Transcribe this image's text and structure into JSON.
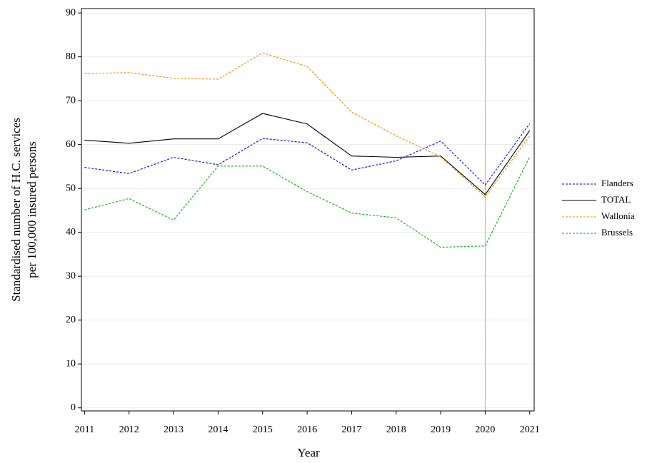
{
  "chart_data": {
    "type": "line",
    "xlabel": "Year",
    "ylabel": [
      "Standardised number of H.C. services",
      "per 100,000 insured persons"
    ],
    "x": [
      2011,
      2012,
      2013,
      2014,
      2015,
      2016,
      2017,
      2018,
      2019,
      2020,
      2021
    ],
    "series": [
      {
        "name": "Flanders",
        "color": "#0000ff",
        "dashed": true,
        "values": [
          54.8,
          53.4,
          57.1,
          55.4,
          61.4,
          60.4,
          54.2,
          56.3,
          60.8,
          50.8,
          64.8
        ]
      },
      {
        "name": "TOTAL",
        "color": "#000000",
        "dashed": false,
        "values": [
          61.0,
          60.3,
          61.3,
          61.3,
          67.1,
          64.7,
          57.4,
          57.1,
          57.4,
          48.6,
          63.2
        ]
      },
      {
        "name": "Wallonia",
        "color": "#ff8c00",
        "dashed": true,
        "values": [
          76.2,
          76.4,
          75.1,
          74.9,
          80.9,
          77.8,
          67.4,
          62.0,
          57.2,
          48.1,
          62.0
        ]
      },
      {
        "name": "Brussels",
        "color": "#00b000",
        "dashed": true,
        "values": [
          45.1,
          47.7,
          42.8,
          55.1,
          55.1,
          49.3,
          44.4,
          43.3,
          36.6,
          36.9,
          57.2
        ]
      }
    ],
    "xlim": [
      2010.93,
      2021.1
    ],
    "xticks": [
      2011,
      2012,
      2013,
      2014,
      2015,
      2016,
      2017,
      2018,
      2019,
      2020,
      2021
    ],
    "ylim": [
      -0.7,
      91
    ],
    "yticks": [
      0,
      10,
      20,
      30,
      40,
      50,
      60,
      70,
      80,
      90
    ],
    "grid": true,
    "vline": 2020,
    "vline_color": "#e0a0a0",
    "legend": "right"
  }
}
